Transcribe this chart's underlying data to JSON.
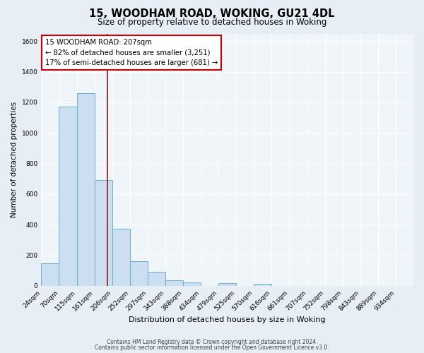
{
  "title": "15, WOODHAM ROAD, WOKING, GU21 4DL",
  "subtitle": "Size of property relative to detached houses in Woking",
  "xlabel": "Distribution of detached houses by size in Woking",
  "ylabel": "Number of detached properties",
  "bar_color": "#ccdff0",
  "bar_edge_color": "#6aadd5",
  "bin_labels": [
    "24sqm",
    "70sqm",
    "115sqm",
    "161sqm",
    "206sqm",
    "252sqm",
    "297sqm",
    "343sqm",
    "388sqm",
    "434sqm",
    "479sqm",
    "525sqm",
    "570sqm",
    "616sqm",
    "661sqm",
    "707sqm",
    "752sqm",
    "798sqm",
    "843sqm",
    "889sqm",
    "934sqm"
  ],
  "bar_values": [
    148,
    1170,
    1260,
    690,
    375,
    160,
    90,
    38,
    22,
    0,
    18,
    0,
    12,
    0,
    0,
    0,
    0,
    0,
    0,
    0,
    0
  ],
  "vline_x": 3.75,
  "vline_color": "#8b1a1a",
  "annotation_line1": "15 WOODHAM ROAD: 207sqm",
  "annotation_line2": "← 82% of detached houses are smaller (3,251)",
  "annotation_line3": "17% of semi-detached houses are larger (681) →",
  "ylim": [
    0,
    1650
  ],
  "yticks": [
    0,
    200,
    400,
    600,
    800,
    1000,
    1200,
    1400,
    1600
  ],
  "footer1": "Contains HM Land Registry data © Crown copyright and database right 2024.",
  "footer2": "Contains public sector information licensed under the Open Government Licence v3.0.",
  "bg_color": "#e8eef5",
  "plot_bg_color": "#f0f5fa",
  "grid_color": "#ffffff",
  "title_fontsize": 10.5,
  "subtitle_fontsize": 8.5
}
